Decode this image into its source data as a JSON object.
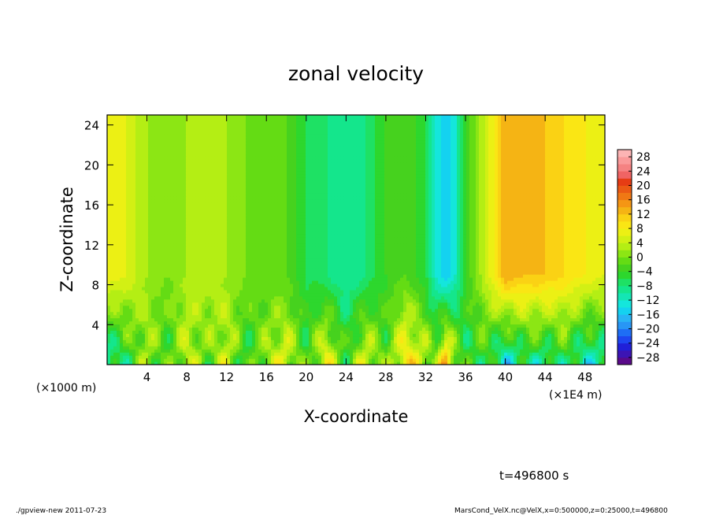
{
  "chart_data": {
    "type": "heatmap",
    "title": "zonal velocity",
    "xlabel": "X-coordinate",
    "ylabel": "Z-coordinate",
    "x_unit_note": "(×1E4 m)",
    "y_unit_note": "(×1000 m)",
    "xlim": [
      0,
      50
    ],
    "ylim": [
      0,
      25
    ],
    "x_ticks": [
      4,
      8,
      12,
      16,
      20,
      24,
      28,
      32,
      36,
      40,
      44,
      48
    ],
    "y_ticks": [
      4,
      8,
      12,
      16,
      20,
      24
    ],
    "x_tick_labels": [
      "4",
      "8",
      "12",
      "16",
      "20",
      "24",
      "28",
      "32",
      "36",
      "40",
      "44",
      "48"
    ],
    "y_tick_labels": [
      "4",
      "8",
      "12",
      "16",
      "20",
      "24"
    ],
    "colorbar": {
      "levels": [
        -30,
        -28,
        -26,
        -24,
        -22,
        -20,
        -18,
        -16,
        -14,
        -12,
        -10,
        -8,
        -6,
        -4,
        -2,
        0,
        2,
        4,
        6,
        8,
        10,
        12,
        14,
        16,
        18,
        20,
        22,
        24,
        26,
        28,
        30
      ],
      "tick_values": [
        28,
        24,
        20,
        16,
        12,
        8,
        4,
        0,
        -4,
        -8,
        -12,
        -16,
        -20,
        -24,
        -28
      ],
      "tick_labels": [
        "28",
        "24",
        "20",
        "16",
        "12",
        "8",
        "4",
        "0",
        "−4",
        "−8",
        "−12",
        "−16",
        "−20",
        "−24",
        "−28"
      ],
      "colors": [
        "#5a0a8a",
        "#3c14b4",
        "#2020d8",
        "#1e46f0",
        "#1e6ef5",
        "#2896f5",
        "#28b4f5",
        "#14d2f0",
        "#14e6dc",
        "#14e6b4",
        "#14e68c",
        "#1ee164",
        "#2dd72d",
        "#46d21e",
        "#64dc14",
        "#8ce614",
        "#b4ee14",
        "#d2f014",
        "#ecf014",
        "#fae614",
        "#fad214",
        "#f5b414",
        "#f59614",
        "#f07814",
        "#eb5a14",
        "#e63c14",
        "#f06464",
        "#f58282",
        "#fa9a9a",
        "#fcb4b4"
      ]
    },
    "annotations": {
      "time": "t=496800 s",
      "footer_left": "./gpview-new   2011-07-23",
      "footer_right": "MarsCond_VelX.nc@VelX,x=0:500000,z=0:25000,t=496800"
    },
    "field_description": {
      "columns": [
        0,
        2,
        4,
        6,
        8,
        10,
        12,
        14,
        16,
        18,
        20,
        22,
        24,
        26,
        28,
        30,
        32,
        33,
        34,
        35,
        36,
        38,
        40,
        42,
        44,
        46,
        48,
        50
      ],
      "upper_level_profile": [
        8,
        6,
        2,
        0,
        2,
        4,
        2,
        0,
        -2,
        -2,
        -6,
        -8,
        -10,
        -8,
        -4,
        -2,
        -6,
        -12,
        -16,
        -12,
        -4,
        4,
        14,
        12,
        12,
        10,
        8,
        6
      ],
      "surface_profile": [
        -12,
        -6,
        2,
        -4,
        4,
        -2,
        4,
        -6,
        2,
        6,
        -4,
        8,
        -4,
        6,
        -2,
        10,
        4,
        0,
        14,
        2,
        -6,
        -4,
        -14,
        -8,
        -10,
        -6,
        -12,
        -10
      ]
    }
  }
}
